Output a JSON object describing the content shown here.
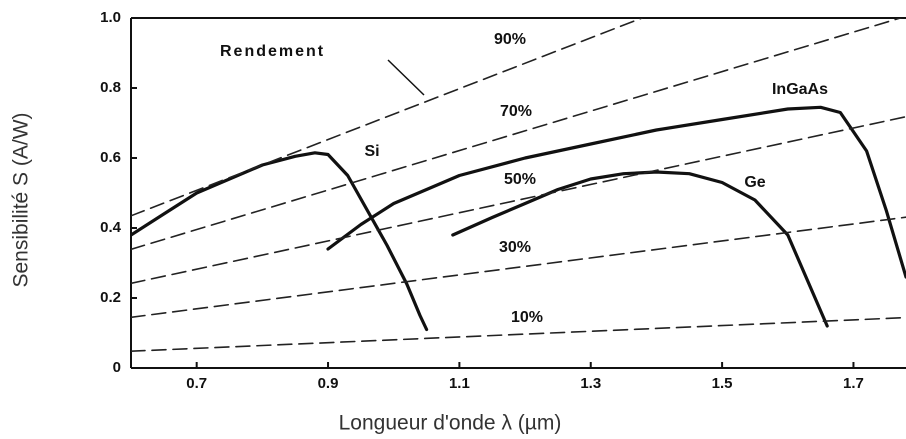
{
  "chart_data": {
    "type": "line",
    "xlabel": "Longueur d'onde  λ (µm)",
    "ylabel": "Sensibilité S (A/W)",
    "annotation": "Rendement",
    "xlim": [
      0.6,
      1.78
    ],
    "ylim": [
      0,
      1.0
    ],
    "xticks": [
      0.7,
      0.9,
      1.1,
      1.3,
      1.5,
      1.7
    ],
    "yticks": [
      0,
      0.2,
      0.4,
      0.6,
      0.8,
      {
        "value": 1,
        "label": "1.0"
      }
    ],
    "series": [
      {
        "name": "Si",
        "color": "#111111",
        "dashed": false,
        "x": [
          0.6,
          0.65,
          0.7,
          0.75,
          0.8,
          0.85,
          0.88,
          0.9,
          0.93,
          0.96,
          0.99,
          1.02,
          1.04,
          1.05
        ],
        "values": [
          0.38,
          0.44,
          0.5,
          0.54,
          0.58,
          0.605,
          0.615,
          0.61,
          0.55,
          0.45,
          0.35,
          0.24,
          0.15,
          0.11
        ]
      },
      {
        "name": "InGaAs",
        "color": "#111111",
        "dashed": false,
        "x": [
          0.9,
          0.95,
          1.0,
          1.05,
          1.1,
          1.2,
          1.3,
          1.4,
          1.5,
          1.6,
          1.65,
          1.68,
          1.72,
          1.75,
          1.78
        ],
        "values": [
          0.34,
          0.41,
          0.47,
          0.51,
          0.55,
          0.6,
          0.64,
          0.68,
          0.71,
          0.74,
          0.745,
          0.73,
          0.62,
          0.45,
          0.26
        ]
      },
      {
        "name": "Ge",
        "color": "#111111",
        "dashed": false,
        "x": [
          1.09,
          1.15,
          1.2,
          1.25,
          1.3,
          1.35,
          1.4,
          1.45,
          1.5,
          1.55,
          1.6,
          1.63,
          1.66
        ],
        "values": [
          0.38,
          0.43,
          0.47,
          0.51,
          0.54,
          0.555,
          0.56,
          0.555,
          0.53,
          0.48,
          0.38,
          0.25,
          0.12
        ]
      },
      {
        "name": "90%",
        "color": "#222222",
        "dashed": true,
        "x": [
          0.6,
          1.378
        ],
        "values": [
          0.435,
          1.0
        ]
      },
      {
        "name": "70%",
        "color": "#222222",
        "dashed": true,
        "x": [
          0.6,
          1.78
        ],
        "values": [
          0.339,
          1.005
        ]
      },
      {
        "name": "50%",
        "color": "#222222",
        "dashed": true,
        "x": [
          0.6,
          1.78
        ],
        "values": [
          0.242,
          0.718
        ]
      },
      {
        "name": "30%",
        "color": "#222222",
        "dashed": true,
        "x": [
          0.6,
          1.78
        ],
        "values": [
          0.145,
          0.431
        ]
      },
      {
        "name": "10%",
        "color": "#222222",
        "dashed": true,
        "x": [
          0.6,
          1.78
        ],
        "values": [
          0.048,
          0.144
        ]
      }
    ]
  }
}
